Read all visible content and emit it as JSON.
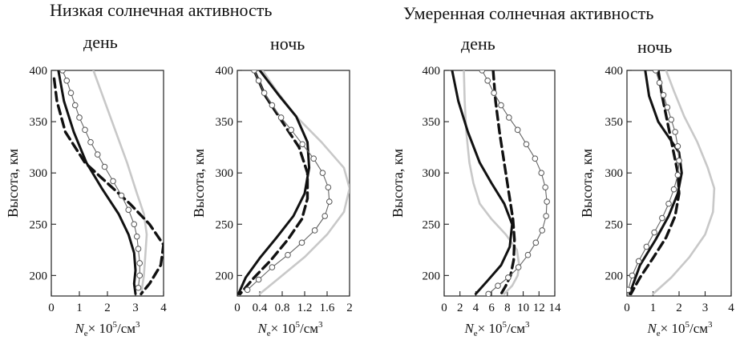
{
  "group_titles": [
    "Низкая солнечная активность",
    "Умеренная солнечная активность"
  ],
  "panel_titles": [
    "день",
    "ночь",
    "день",
    "ночь"
  ],
  "chart_data": [
    {
      "type": "line",
      "title": "день",
      "ylabel": "Высота, км",
      "xlabel_prefix": "N",
      "xlabel_sub": "e",
      "xlabel_mid": "× 10",
      "xlabel_sup": "5",
      "xlabel_suffix": "/см",
      "xlabel_sup2": "3",
      "xlim": [
        0,
        4
      ],
      "ylim": [
        180,
        400
      ],
      "xticks": [
        0,
        1,
        2,
        3,
        4
      ],
      "xtick_labels": [
        "0",
        "1",
        "2",
        "3",
        "4"
      ],
      "yticks": [
        200,
        250,
        300,
        350,
        400
      ],
      "ytick_labels": [
        "200",
        "250",
        "300",
        "350",
        "400"
      ],
      "series": [
        {
          "style": "gray",
          "x": [
            1.5,
            1.9,
            2.3,
            2.7,
            3.05,
            3.3,
            3.4,
            3.35,
            3.3,
            3.2
          ],
          "y": [
            400,
            370,
            340,
            310,
            280,
            260,
            240,
            220,
            200,
            182
          ]
        },
        {
          "style": "dashed",
          "x": [
            0.1,
            0.2,
            0.5,
            1.2,
            2.0,
            2.8,
            3.5,
            4.0,
            3.9,
            3.5,
            3.2
          ],
          "y": [
            392,
            370,
            340,
            310,
            290,
            270,
            250,
            230,
            210,
            192,
            182
          ]
        },
        {
          "style": "solid",
          "x": [
            0.25,
            0.45,
            0.8,
            1.25,
            1.8,
            2.4,
            2.75,
            2.95,
            3.0,
            2.95,
            3.0
          ],
          "y": [
            400,
            370,
            340,
            310,
            285,
            260,
            240,
            222,
            205,
            192,
            182
          ]
        },
        {
          "style": "circles",
          "x": [
            0.4,
            0.55,
            0.7,
            0.85,
            1.0,
            1.2,
            1.4,
            1.65,
            1.9,
            2.2,
            2.5,
            2.75,
            2.95,
            3.05,
            3.1,
            3.15,
            3.15,
            3.1
          ],
          "y": [
            400,
            390,
            378,
            366,
            354,
            342,
            330,
            318,
            306,
            292,
            278,
            264,
            250,
            238,
            226,
            212,
            200,
            188
          ]
        }
      ]
    },
    {
      "type": "line",
      "title": "ночь",
      "ylabel": "Высота, км",
      "xlabel_prefix": "N",
      "xlabel_sub": "e",
      "xlabel_mid": "× 10",
      "xlabel_sup": "5",
      "xlabel_suffix": "/см",
      "xlabel_sup2": "3",
      "xlim": [
        0,
        2
      ],
      "ylim": [
        180,
        400
      ],
      "xticks": [
        0,
        0.4,
        0.8,
        1.2,
        1.6,
        2.0
      ],
      "xtick_labels": [
        "0",
        "0.4",
        "0.8",
        "1.2",
        "1.6",
        "2"
      ],
      "yticks": [
        200,
        250,
        300,
        350,
        400
      ],
      "ytick_labels": [
        "200",
        "250",
        "300",
        "350",
        "400"
      ],
      "series": [
        {
          "style": "gray",
          "x": [
            0.45,
            0.7,
            1.05,
            1.5,
            1.9,
            2.0,
            1.9,
            1.6,
            1.2,
            0.8,
            0.4
          ],
          "y": [
            400,
            380,
            355,
            330,
            305,
            285,
            262,
            240,
            218,
            200,
            182
          ]
        },
        {
          "style": "dashed",
          "x": [
            0.3,
            0.5,
            0.8,
            1.1,
            1.25,
            1.25,
            1.15,
            0.9,
            0.6,
            0.3,
            0.05
          ],
          "y": [
            400,
            375,
            350,
            325,
            300,
            275,
            255,
            235,
            215,
            198,
            182
          ]
        },
        {
          "style": "solid",
          "x": [
            0.4,
            0.75,
            1.05,
            1.25,
            1.28,
            1.2,
            1.0,
            0.7,
            0.4,
            0.15,
            0.02
          ],
          "y": [
            400,
            375,
            355,
            330,
            305,
            280,
            258,
            237,
            217,
            198,
            182
          ]
        },
        {
          "style": "circles",
          "x": [
            0.3,
            0.38,
            0.48,
            0.62,
            0.78,
            0.96,
            1.16,
            1.36,
            1.52,
            1.62,
            1.64,
            1.56,
            1.38,
            1.15,
            0.9,
            0.62,
            0.38,
            0.18
          ],
          "y": [
            400,
            390,
            378,
            366,
            354,
            342,
            328,
            314,
            300,
            286,
            272,
            258,
            244,
            232,
            220,
            208,
            196,
            186
          ]
        }
      ]
    },
    {
      "type": "line",
      "title": "день",
      "ylabel": "Высота, км",
      "xlabel_prefix": "N",
      "xlabel_sub": "e",
      "xlabel_mid": "× 10",
      "xlabel_sup": "5",
      "xlabel_suffix": "/см",
      "xlabel_sup2": "3",
      "xlim": [
        0,
        14
      ],
      "ylim": [
        180,
        400
      ],
      "xticks": [
        0,
        2,
        4,
        6,
        8,
        10,
        12,
        14
      ],
      "xtick_labels": [
        "0",
        "2",
        "4",
        "6",
        "8",
        "10",
        "12",
        "14"
      ],
      "yticks": [
        200,
        250,
        300,
        350,
        400
      ],
      "ytick_labels": [
        "200",
        "250",
        "300",
        "350",
        "400"
      ],
      "series": [
        {
          "style": "gray",
          "x": [
            2.5,
            2.6,
            2.8,
            3.2,
            3.7,
            4.5,
            6.0,
            7.8,
            9.2,
            9.5,
            9.3,
            8.6,
            7.6
          ],
          "y": [
            400,
            370,
            340,
            310,
            290,
            270,
            255,
            240,
            225,
            210,
            200,
            190,
            182
          ]
        },
        {
          "style": "dashed",
          "x": [
            6.2,
            6.5,
            7.0,
            7.6,
            8.2,
            8.7,
            8.9,
            8.8,
            8.4,
            7.8,
            7.2
          ],
          "y": [
            400,
            370,
            340,
            310,
            280,
            255,
            235,
            215,
            200,
            190,
            182
          ]
        },
        {
          "style": "solid",
          "x": [
            1.0,
            1.8,
            3.0,
            4.5,
            6.0,
            7.6,
            8.6,
            8.3,
            7.2,
            5.5,
            4.0
          ],
          "y": [
            400,
            370,
            340,
            310,
            290,
            270,
            250,
            228,
            210,
            195,
            182
          ]
        },
        {
          "style": "circles",
          "x": [
            4.8,
            5.5,
            6.3,
            7.2,
            8.2,
            9.3,
            10.4,
            11.5,
            12.3,
            12.8,
            13.0,
            12.9,
            12.4,
            11.6,
            10.6,
            9.4,
            8.1,
            6.8,
            5.6
          ],
          "y": [
            400,
            390,
            378,
            366,
            354,
            342,
            328,
            314,
            300,
            286,
            272,
            258,
            244,
            232,
            220,
            208,
            198,
            190,
            182
          ]
        }
      ]
    },
    {
      "type": "line",
      "title": "ночь",
      "ylabel": "Высота, км",
      "xlabel_prefix": "N",
      "xlabel_sub": "e",
      "xlabel_mid": "× 10",
      "xlabel_sup": "5",
      "xlabel_suffix": "/см",
      "xlabel_sup2": "3",
      "xlim": [
        0,
        4
      ],
      "ylim": [
        180,
        400
      ],
      "xticks": [
        0,
        1,
        2,
        3,
        4
      ],
      "xtick_labels": [
        "0",
        "1",
        "2",
        "3",
        "4"
      ],
      "yticks": [
        200,
        250,
        300,
        350,
        400
      ],
      "ytick_labels": [
        "200",
        "250",
        "300",
        "350",
        "400"
      ],
      "series": [
        {
          "style": "gray",
          "x": [
            1.5,
            1.8,
            2.2,
            2.7,
            3.1,
            3.35,
            3.3,
            3.0,
            2.4,
            1.7,
            1.0
          ],
          "y": [
            400,
            380,
            355,
            330,
            305,
            285,
            262,
            240,
            218,
            198,
            182
          ]
        },
        {
          "style": "dashed",
          "x": [
            1.2,
            1.35,
            1.55,
            1.75,
            1.95,
            2.0,
            1.85,
            1.5,
            1.0,
            0.5,
            0.15
          ],
          "y": [
            400,
            375,
            350,
            325,
            300,
            280,
            258,
            237,
            217,
            198,
            182
          ]
        },
        {
          "style": "solid",
          "x": [
            0.7,
            0.85,
            1.2,
            1.6,
            2.0,
            2.1,
            1.95,
            1.6,
            1.1,
            0.5,
            0.1
          ],
          "y": [
            400,
            375,
            350,
            335,
            320,
            300,
            280,
            258,
            235,
            210,
            182
          ]
        },
        {
          "style": "circles",
          "x": [
            1.1,
            1.25,
            1.4,
            1.55,
            1.7,
            1.85,
            1.95,
            2.0,
            1.95,
            1.8,
            1.6,
            1.35,
            1.05,
            0.75,
            0.45,
            0.2,
            0.05
          ],
          "y": [
            400,
            388,
            376,
            364,
            352,
            340,
            326,
            312,
            298,
            284,
            270,
            256,
            242,
            228,
            214,
            200,
            186
          ]
        }
      ]
    }
  ]
}
